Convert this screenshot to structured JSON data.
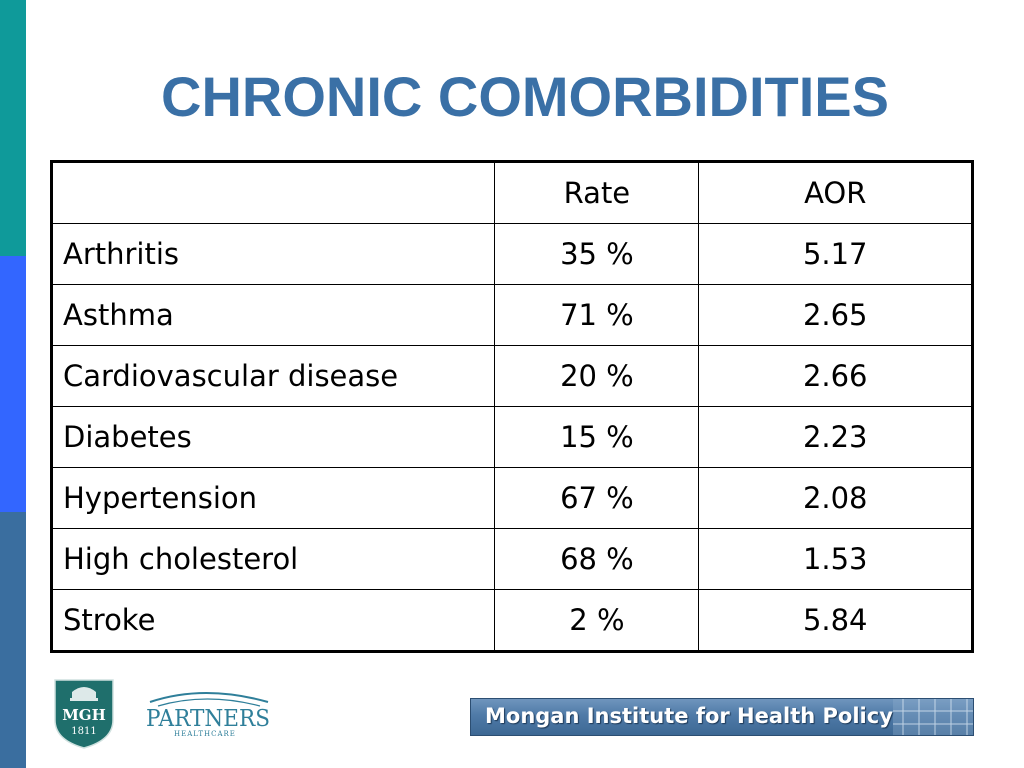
{
  "slide": {
    "title": "CHRONIC COMORBIDITIES"
  },
  "table": {
    "headers": [
      "",
      "Rate",
      "AOR"
    ],
    "rows": [
      {
        "condition": "Arthritis",
        "rate": "35 %",
        "aor": "5.17"
      },
      {
        "condition": "Asthma",
        "rate": "71 %",
        "aor": "2.65"
      },
      {
        "condition": "Cardiovascular disease",
        "rate": "20 %",
        "aor": "2.66"
      },
      {
        "condition": "Diabetes",
        "rate": "15 %",
        "aor": "2.23"
      },
      {
        "condition": "Hypertension",
        "rate": "67 %",
        "aor": "2.08"
      },
      {
        "condition": "High cholesterol",
        "rate": "68 %",
        "aor": "1.53"
      },
      {
        "condition": "Stroke",
        "rate": "2 %",
        "aor": "5.84"
      }
    ]
  },
  "logos": {
    "mgh": {
      "name": "MGH",
      "year": "1811"
    },
    "partners": {
      "name": "PARTNERS",
      "sub": "HEALTHCARE"
    },
    "mongan": {
      "text": "Mongan Institute for Health Policy"
    }
  },
  "colors": {
    "title": "#3a70a6",
    "strip_teal": "#0f9a9a",
    "strip_blue": "#3366ff",
    "strip_steel": "#3a6e9f",
    "mgh_shield": "#1f6f6c",
    "partners": "#2f7f9a"
  }
}
